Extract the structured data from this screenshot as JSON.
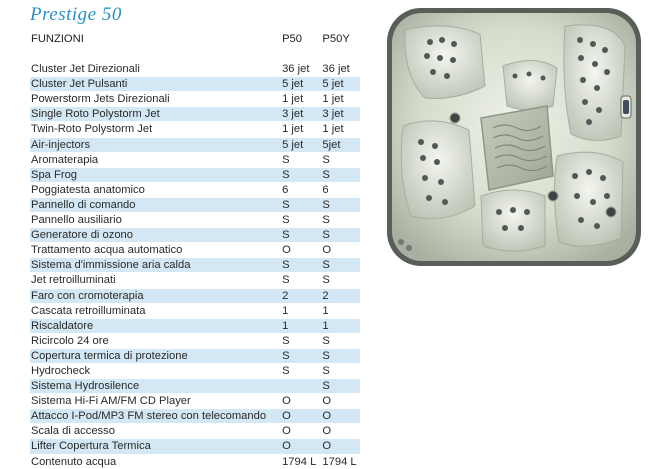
{
  "brand_title": "Prestige 50",
  "table": {
    "headers": {
      "feature": "FUNZIONI",
      "p50": "P50",
      "p50y": "P50Y"
    },
    "rows": [
      {
        "feature": "Cluster Jet Direzionali",
        "p50": "36 jet",
        "p50y": "36 jet"
      },
      {
        "feature": "Cluster Jet Pulsanti",
        "p50": "5 jet",
        "p50y": "5 jet"
      },
      {
        "feature": "Powerstorm Jets Direzionali",
        "p50": "1 jet",
        "p50y": "1 jet"
      },
      {
        "feature": "Single Roto Polystorm Jet",
        "p50": "3 jet",
        "p50y": "3 jet"
      },
      {
        "feature": "Twin-Roto Polystorm Jet",
        "p50": "1 jet",
        "p50y": "1 jet"
      },
      {
        "feature": "Air-injectors",
        "p50": "5 jet",
        "p50y": "5jet"
      },
      {
        "feature": "Aromaterapia",
        "p50": "S",
        "p50y": "S"
      },
      {
        "feature": "Spa Frog",
        "p50": "S",
        "p50y": "S"
      },
      {
        "feature": "Poggiatesta anatomico",
        "p50": "6",
        "p50y": "6"
      },
      {
        "feature": "Pannello di comando",
        "p50": "S",
        "p50y": "S"
      },
      {
        "feature": "Pannello ausiliario",
        "p50": "S",
        "p50y": "S"
      },
      {
        "feature": "Generatore di ozono",
        "p50": "S",
        "p50y": "S"
      },
      {
        "feature": "Trattamento acqua automatico",
        "p50": "O",
        "p50y": "O"
      },
      {
        "feature": "Sistema d'immissione aria calda",
        "p50": "S",
        "p50y": "S"
      },
      {
        "feature": "Jet retroilluminati",
        "p50": "S",
        "p50y": "S"
      },
      {
        "feature": "Faro con cromoterapia",
        "p50": "2",
        "p50y": "2"
      },
      {
        "feature": "Cascata retroilluminata",
        "p50": "1",
        "p50y": "1"
      },
      {
        "feature": "Riscaldatore",
        "p50": "1",
        "p50y": "1"
      },
      {
        "feature": "Ricircolo 24 ore",
        "p50": "S",
        "p50y": "S"
      },
      {
        "feature": "Copertura termica di protezione",
        "p50": "S",
        "p50y": "S"
      },
      {
        "feature": "Hydrocheck",
        "p50": "S",
        "p50y": "S"
      },
      {
        "feature": "Sistema Hydrosilence",
        "p50": "",
        "p50y": "S"
      },
      {
        "feature": "Sistema Hi-Fi AM/FM CD Player",
        "p50": "O",
        "p50y": "O"
      },
      {
        "feature": "Attacco I-Pod/MP3 FM stereo con telecomando",
        "p50": "O",
        "p50y": "O"
      },
      {
        "feature": "Scala di accesso",
        "p50": "O",
        "p50y": "O"
      },
      {
        "feature": "Lifter Copertura Termica",
        "p50": "O",
        "p50y": "O"
      },
      {
        "feature": "Contenuto acqua",
        "p50": "1794 L",
        "p50y": "1794 L"
      }
    ]
  },
  "colors": {
    "brand": "#2b8fc3",
    "row_stripe": "#d3e8f4",
    "tub_shell": "#c9cfc0",
    "tub_rim": "#5a5e58"
  },
  "product_image": {
    "kind": "spa-tub-top-view"
  }
}
